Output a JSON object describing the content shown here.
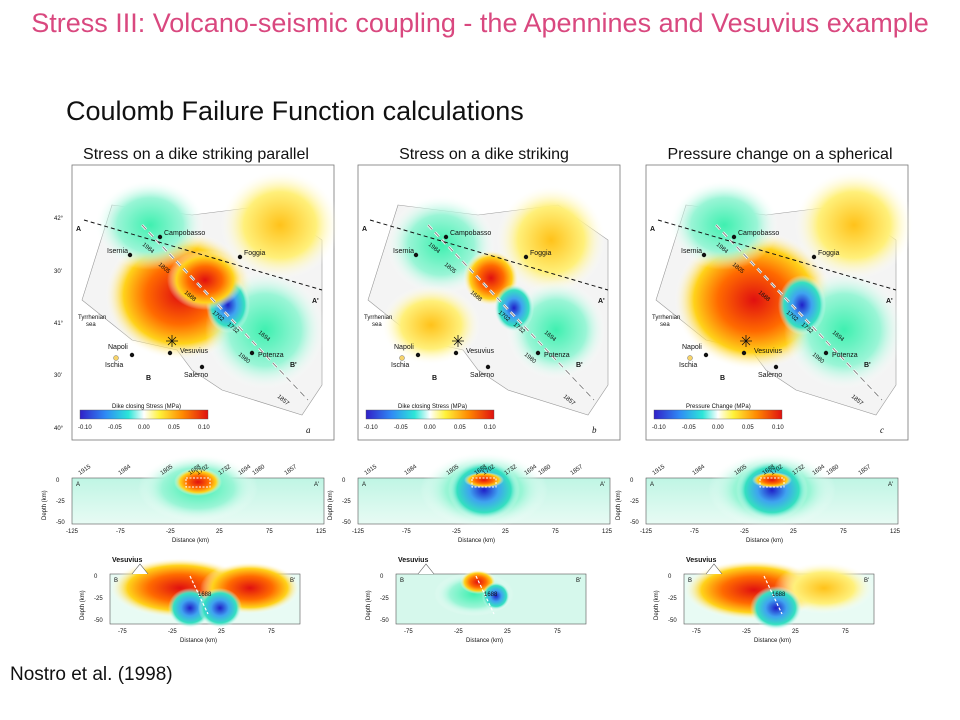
{
  "slide": {
    "title": "Stress III: Volcano-seismic coupling - the Apennines and Vesuvius example",
    "subtitle": "Coulomb Failure Function calculations",
    "citation": "Nostro et al. (1998)"
  },
  "colors": {
    "title": "#d9487f"
  },
  "panels": [
    {
      "caption": "Stress on a dike striking parallel to the Apennines",
      "scale_label": "Dike closing Stress (MPa)",
      "panel_letter": "a"
    },
    {
      "caption": "Stress on a dike striking Perpendicular to the Apennines",
      "scale_label": "Dike closing Stress (MPa)",
      "panel_letter": "b"
    },
    {
      "caption": "Pressure change on a spherical magma chamber",
      "scale_label": "Pressure Change (MPa)",
      "panel_letter": "c"
    }
  ],
  "map_labels": {
    "latitudes": [
      "42°",
      "30'",
      "41°",
      "30'",
      "40°"
    ],
    "places": {
      "campobasso": "Campobasso",
      "isernia": "Isernia",
      "foggia": "Foggia",
      "tyrrhenian": "Tyrrhenian",
      "sea": "sea",
      "napoli": "Napoli",
      "ischia": "Ischia",
      "vesuvius": "Vesuvius",
      "salerno": "Salerno",
      "potenza": "Potenza"
    },
    "quakes": [
      "1984",
      "1805",
      "1688",
      "1702",
      "1732",
      "1694",
      "1980",
      "1857"
    ],
    "points": {
      "a": "A",
      "a_prime": "A'",
      "b": "B",
      "b_prime": "B'"
    },
    "scale_ticks": [
      "-0.10",
      "-0.05",
      "0.00",
      "0.05",
      "0.10"
    ]
  },
  "section_aa": {
    "years": [
      "1915",
      "1984",
      "1805",
      "1688",
      "1702",
      "1732",
      "1694",
      "1980",
      "1857"
    ],
    "ylabel": "Depth (km)",
    "xlabel": "Distance (km)",
    "yticks": [
      "0",
      "-25",
      "-50"
    ],
    "xticks": [
      "-125",
      "-75",
      "-25",
      "25",
      "75",
      "125"
    ],
    "start": "A",
    "end": "A'"
  },
  "section_bb": {
    "volcano": "Vesuvius",
    "ylabel": "Depth (km)",
    "xlabel": "Distance (km)",
    "yticks": [
      "0",
      "-25",
      "-50"
    ],
    "xticks": [
      "-75",
      "-25",
      "25",
      "75"
    ],
    "quake": "1688",
    "start": "B",
    "end": "B'"
  }
}
